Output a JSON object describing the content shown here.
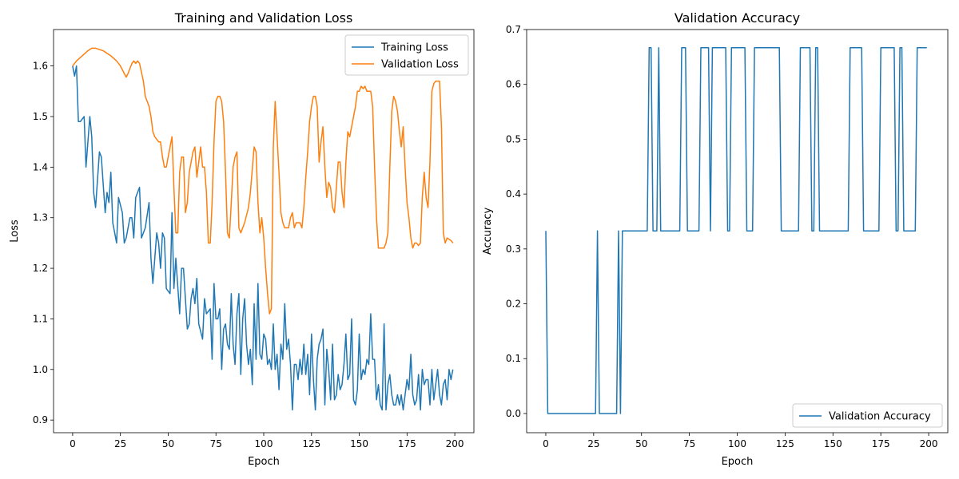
{
  "chart_data": [
    {
      "type": "line",
      "title": "Training and Validation Loss",
      "xlabel": "Epoch",
      "ylabel": "Loss",
      "xlim": [
        -10,
        210
      ],
      "ylim": [
        0.875,
        1.672
      ],
      "xticks": [
        0,
        25,
        50,
        75,
        100,
        125,
        150,
        175,
        200
      ],
      "yticks": [
        0.9,
        1.0,
        1.1,
        1.2,
        1.3,
        1.4,
        1.5,
        1.6
      ],
      "xtick_labels": [
        "0",
        "25",
        "50",
        "75",
        "100",
        "125",
        "150",
        "175",
        "200"
      ],
      "ytick_labels": [
        "0.9",
        "1.0",
        "1.1",
        "1.2",
        "1.3",
        "1.4",
        "1.5",
        "1.6"
      ],
      "grid": false,
      "legend": "top-right",
      "series": [
        {
          "name": "Training Loss",
          "color": "#1f77b4",
          "x": [
            0,
            1,
            2,
            3,
            4,
            6,
            7,
            9,
            10,
            11,
            12,
            14,
            15,
            17,
            18,
            19,
            20,
            21,
            23,
            24,
            26,
            27,
            28,
            30,
            31,
            32,
            33,
            35,
            36,
            38,
            40,
            41,
            42,
            44,
            45,
            46,
            47,
            48,
            49,
            51,
            52,
            53,
            54,
            56,
            57,
            58,
            60,
            61,
            62,
            63,
            64,
            65,
            66,
            68,
            69,
            70,
            72,
            73,
            74,
            75,
            76,
            77,
            78,
            79,
            80,
            81,
            82,
            83,
            84,
            85,
            86,
            87,
            88,
            89,
            90,
            91,
            92,
            93,
            94,
            95,
            96,
            97,
            98,
            99,
            100,
            101,
            102,
            103,
            104,
            105,
            106,
            107,
            108,
            109,
            110,
            111,
            112,
            113,
            114,
            115,
            116,
            117,
            118,
            119,
            120,
            121,
            122,
            123,
            124,
            125,
            126,
            127,
            128,
            129,
            130,
            131,
            132,
            133,
            134,
            135,
            136,
            137,
            138,
            139,
            140,
            141,
            142,
            143,
            144,
            145,
            146,
            147,
            148,
            149,
            150,
            151,
            152,
            153,
            154,
            155,
            156,
            157,
            158,
            159,
            160,
            161,
            162,
            163,
            164,
            165,
            166,
            167,
            168,
            169,
            170,
            171,
            172,
            173,
            174,
            175,
            176,
            177,
            178,
            179,
            180,
            181,
            182,
            183,
            184,
            185,
            186,
            187,
            188,
            189,
            190,
            191,
            192,
            193,
            194,
            195,
            196,
            197,
            198,
            199
          ],
          "y": [
            1.6,
            1.58,
            1.6,
            1.49,
            1.49,
            1.5,
            1.4,
            1.5,
            1.46,
            1.35,
            1.32,
            1.43,
            1.42,
            1.31,
            1.35,
            1.33,
            1.39,
            1.29,
            1.25,
            1.34,
            1.31,
            1.25,
            1.26,
            1.3,
            1.3,
            1.26,
            1.34,
            1.36,
            1.26,
            1.28,
            1.33,
            1.22,
            1.17,
            1.27,
            1.25,
            1.2,
            1.27,
            1.26,
            1.16,
            1.15,
            1.31,
            1.16,
            1.22,
            1.11,
            1.2,
            1.2,
            1.08,
            1.09,
            1.14,
            1.16,
            1.13,
            1.18,
            1.09,
            1.06,
            1.14,
            1.11,
            1.12,
            1.02,
            1.17,
            1.1,
            1.1,
            1.12,
            1.0,
            1.08,
            1.09,
            1.05,
            1.04,
            1.15,
            1.05,
            1.01,
            1.11,
            1.15,
            0.99,
            1.1,
            1.14,
            1.05,
            1.01,
            1.04,
            0.97,
            1.13,
            1.02,
            1.17,
            1.03,
            1.02,
            1.07,
            1.06,
            1.01,
            1.02,
            1.0,
            1.09,
            1.0,
            1.03,
            0.96,
            1.05,
            1.02,
            1.13,
            1.04,
            1.06,
            1.01,
            0.92,
            1.01,
            1.01,
            0.98,
            1.02,
            0.99,
            1.05,
            0.99,
            1.03,
            0.95,
            1.07,
            0.98,
            0.92,
            1.02,
            1.05,
            1.06,
            1.08,
            0.93,
            1.04,
            1.0,
            0.94,
            1.05,
            0.94,
            0.95,
            0.99,
            0.96,
            0.97,
            1.01,
            1.07,
            0.98,
            0.99,
            1.1,
            0.94,
            0.93,
            0.96,
            1.07,
            0.98,
            1.0,
            0.99,
            1.02,
            1.01,
            1.11,
            1.02,
            1.02,
            0.94,
            0.97,
            0.93,
            0.92,
            1.09,
            0.92,
            0.97,
            0.99,
            0.95,
            0.93,
            0.93,
            0.95,
            0.93,
            0.95,
            0.92,
            0.95,
            0.98,
            0.96,
            1.03,
            0.95,
            0.93,
            0.94,
            0.99,
            0.92,
            1.0,
            0.97,
            0.98,
            0.98,
            0.93,
            1.0,
            0.94,
            0.97,
            1.0,
            0.95,
            0.93,
            0.97,
            0.98,
            0.94,
            1.0,
            0.98,
            1.0
          ]
        },
        {
          "name": "Validation Loss",
          "color": "#ff7f0e",
          "x": [
            0,
            2,
            5,
            8,
            10,
            12,
            16,
            18,
            20,
            23,
            25,
            27,
            28,
            29,
            31,
            32,
            33,
            34,
            35,
            37,
            38,
            40,
            41,
            42,
            43,
            45,
            46,
            47,
            48,
            49,
            51,
            52,
            53,
            54,
            55,
            56,
            57,
            58,
            59,
            60,
            61,
            63,
            64,
            65,
            66,
            67,
            68,
            69,
            70,
            71,
            72,
            73,
            74,
            75,
            76,
            77,
            78,
            79,
            80,
            81,
            82,
            83,
            84,
            85,
            86,
            87,
            88,
            90,
            92,
            93,
            95,
            96,
            97,
            98,
            99,
            100,
            101,
            102,
            103,
            104,
            105,
            106,
            107,
            108,
            109,
            110,
            111,
            113,
            114,
            115,
            116,
            117,
            119,
            120,
            121,
            122,
            123,
            124,
            125,
            126,
            127,
            128,
            129,
            130,
            131,
            132,
            133,
            134,
            135,
            136,
            137,
            138,
            139,
            140,
            141,
            142,
            143,
            144,
            145,
            146,
            148,
            149,
            150,
            151,
            152,
            153,
            154,
            156,
            157,
            158,
            159,
            160,
            161,
            162,
            163,
            164,
            165,
            166,
            167,
            168,
            169,
            170,
            171,
            172,
            173,
            174,
            175,
            176,
            177,
            178,
            179,
            180,
            181,
            182,
            183,
            184,
            185,
            186,
            187,
            188,
            189,
            190,
            192,
            193,
            194,
            195,
            196,
            198,
            199
          ],
          "y": [
            1.6,
            1.61,
            1.62,
            1.63,
            1.635,
            1.635,
            1.63,
            1.625,
            1.62,
            1.61,
            1.6,
            1.585,
            1.578,
            1.585,
            1.605,
            1.61,
            1.605,
            1.61,
            1.605,
            1.57,
            1.54,
            1.52,
            1.5,
            1.47,
            1.46,
            1.45,
            1.45,
            1.42,
            1.4,
            1.4,
            1.44,
            1.46,
            1.36,
            1.27,
            1.27,
            1.39,
            1.42,
            1.42,
            1.31,
            1.33,
            1.39,
            1.43,
            1.44,
            1.38,
            1.41,
            1.44,
            1.4,
            1.4,
            1.35,
            1.25,
            1.25,
            1.33,
            1.45,
            1.53,
            1.54,
            1.54,
            1.53,
            1.49,
            1.39,
            1.27,
            1.26,
            1.33,
            1.4,
            1.42,
            1.43,
            1.28,
            1.27,
            1.29,
            1.32,
            1.35,
            1.44,
            1.43,
            1.33,
            1.27,
            1.3,
            1.26,
            1.2,
            1.15,
            1.11,
            1.12,
            1.44,
            1.53,
            1.46,
            1.39,
            1.31,
            1.29,
            1.28,
            1.28,
            1.3,
            1.31,
            1.28,
            1.29,
            1.29,
            1.28,
            1.32,
            1.38,
            1.43,
            1.49,
            1.52,
            1.54,
            1.54,
            1.52,
            1.41,
            1.45,
            1.48,
            1.4,
            1.34,
            1.37,
            1.36,
            1.32,
            1.31,
            1.36,
            1.41,
            1.41,
            1.35,
            1.32,
            1.41,
            1.47,
            1.46,
            1.48,
            1.52,
            1.55,
            1.55,
            1.56,
            1.555,
            1.56,
            1.55,
            1.55,
            1.52,
            1.4,
            1.3,
            1.24,
            1.24,
            1.24,
            1.24,
            1.25,
            1.27,
            1.4,
            1.51,
            1.54,
            1.53,
            1.51,
            1.47,
            1.44,
            1.48,
            1.4,
            1.33,
            1.3,
            1.26,
            1.24,
            1.25,
            1.25,
            1.245,
            1.25,
            1.34,
            1.39,
            1.34,
            1.32,
            1.41,
            1.55,
            1.565,
            1.57,
            1.57,
            1.48,
            1.27,
            1.25,
            1.26,
            1.255,
            1.25
          ]
        }
      ]
    },
    {
      "type": "line",
      "title": "Validation Accuracy",
      "xlabel": "Epoch",
      "ylabel": "Accuracy",
      "xlim": [
        -10,
        210
      ],
      "ylim": [
        -0.035,
        0.7
      ],
      "xticks": [
        0,
        25,
        50,
        75,
        100,
        125,
        150,
        175,
        200
      ],
      "yticks": [
        0.0,
        0.1,
        0.2,
        0.3,
        0.4,
        0.5,
        0.6,
        0.7
      ],
      "xtick_labels": [
        "0",
        "25",
        "50",
        "75",
        "100",
        "125",
        "150",
        "175",
        "200"
      ],
      "ytick_labels": [
        "0.0",
        "0.1",
        "0.2",
        "0.3",
        "0.4",
        "0.5",
        "0.6",
        "0.7"
      ],
      "grid": false,
      "legend": "bottom-right",
      "series": [
        {
          "name": "Validation Accuracy",
          "color": "#1f77b4",
          "runs": [
            [
              0,
              0,
              0.333
            ],
            [
              1,
              26,
              0
            ],
            [
              27,
              27,
              0.333
            ],
            [
              28,
              37,
              0
            ],
            [
              38,
              38,
              0.333
            ],
            [
              39,
              39,
              0
            ],
            [
              40,
              53,
              0.333
            ],
            [
              54,
              55,
              0.667
            ],
            [
              56,
              58,
              0.333
            ],
            [
              59,
              59,
              0.667
            ],
            [
              60,
              70,
              0.333
            ],
            [
              71,
              73,
              0.667
            ],
            [
              74,
              80,
              0.333
            ],
            [
              81,
              85,
              0.667
            ],
            [
              86,
              86,
              0.333
            ],
            [
              87,
              94,
              0.667
            ],
            [
              95,
              96,
              0.333
            ],
            [
              97,
              104,
              0.667
            ],
            [
              105,
              108,
              0.333
            ],
            [
              109,
              122,
              0.667
            ],
            [
              123,
              132,
              0.333
            ],
            [
              133,
              138,
              0.667
            ],
            [
              139,
              140,
              0.333
            ],
            [
              141,
              142,
              0.667
            ],
            [
              143,
              158,
              0.333
            ],
            [
              159,
              165,
              0.667
            ],
            [
              166,
              174,
              0.333
            ],
            [
              175,
              182,
              0.667
            ],
            [
              183,
              184,
              0.333
            ],
            [
              185,
              186,
              0.667
            ],
            [
              187,
              193,
              0.333
            ],
            [
              194,
              199,
              0.667
            ]
          ]
        }
      ]
    }
  ]
}
